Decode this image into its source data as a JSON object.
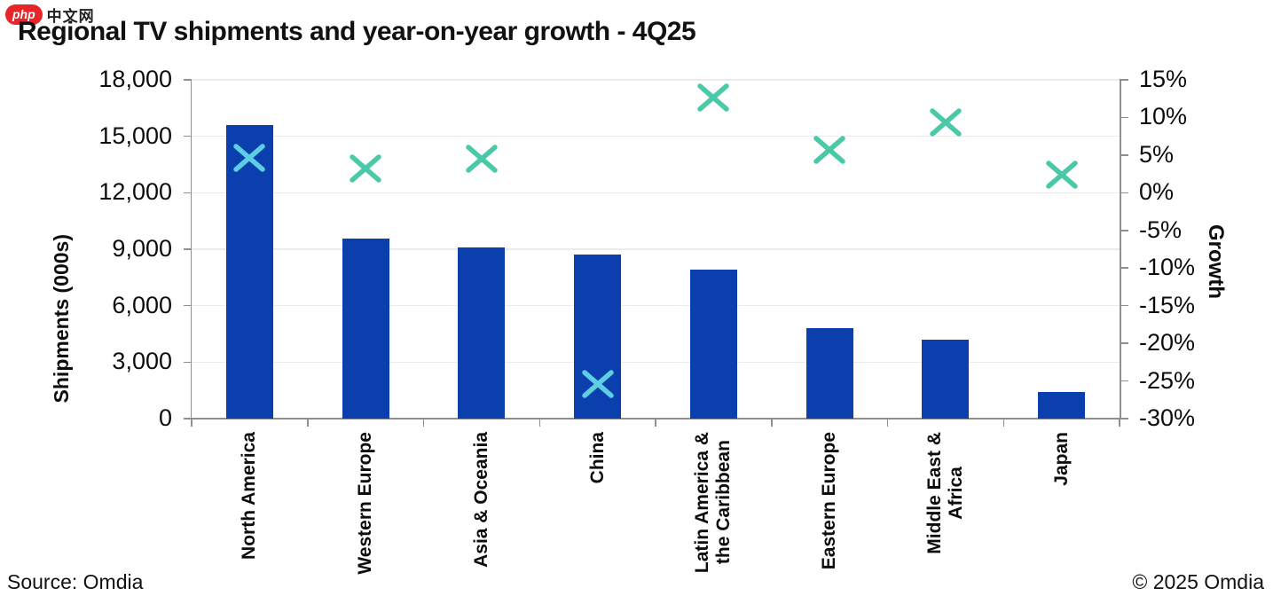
{
  "watermark": {
    "badge": "php",
    "text": "中文网"
  },
  "title": "Regional TV shipments and year-on-year growth - 4Q25",
  "footer": {
    "source": "Source: Omdia",
    "copyright": "© 2025 Omdia"
  },
  "chart_data": {
    "type": "bar",
    "subtype": "bar-with-scatter-x-markers",
    "title": "Regional TV shipments and year-on-year growth - 4Q25",
    "categories": [
      "North America",
      "Western Europe",
      "Asia & Oceania",
      "China",
      "Latin America &\nthe Caribbean",
      "Eastern Europe",
      "Middle East &\nAfrica",
      "Japan"
    ],
    "series": [
      {
        "name": "Shipments (000s)",
        "type": "bar",
        "axis": "left",
        "color": "#0b3fae",
        "values": [
          15600,
          9550,
          9100,
          8700,
          7900,
          4800,
          4200,
          1400
        ]
      },
      {
        "name": "Growth",
        "type": "scatter",
        "marker": "x",
        "axis": "right",
        "color": "#4ac9a8",
        "color_on_bar": "#5ecfe2",
        "values": [
          4.6,
          3.2,
          4.5,
          -25.4,
          12.6,
          5.7,
          9.3,
          2.4
        ]
      }
    ],
    "left_axis": {
      "title": "Shipments (000s)",
      "min": 0,
      "max": 18000,
      "tick_labels": [
        "18,000",
        "15,000",
        "12,000",
        "9,000",
        "6,000",
        "3,000",
        "0"
      ]
    },
    "right_axis": {
      "title": "Growth",
      "min": -30,
      "max": 15,
      "tick_labels": [
        "15%",
        "10%",
        "5%",
        "0%",
        "-5%",
        "-10%",
        "-15%",
        "-20%",
        "-25%",
        "-30%"
      ]
    },
    "grid": "horizontal",
    "legend": "none"
  }
}
